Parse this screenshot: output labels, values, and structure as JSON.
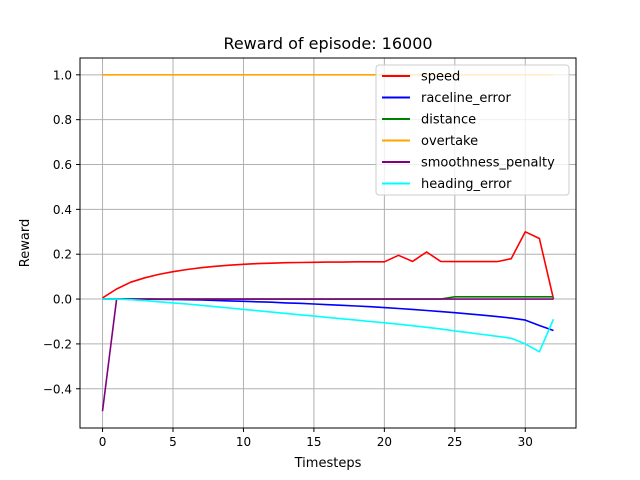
{
  "chart_data": {
    "type": "line",
    "title": "Reward of episode: 16000",
    "xlabel": "Timesteps",
    "ylabel": "Reward",
    "xlim": [
      -1.6,
      33.6
    ],
    "ylim": [
      -0.575,
      1.075
    ],
    "xticks": [
      0,
      5,
      10,
      15,
      20,
      25,
      30
    ],
    "yticks": [
      -0.4,
      -0.2,
      0.0,
      0.2,
      0.4,
      0.6,
      0.8,
      1.0
    ],
    "xtick_labels": [
      "0",
      "5",
      "10",
      "15",
      "20",
      "25",
      "30"
    ],
    "ytick_labels": [
      "−0.4",
      "−0.2",
      "0.0",
      "0.2",
      "0.4",
      "0.6",
      "0.8",
      "1.0"
    ],
    "grid": true,
    "legend_position": "top-right",
    "x": [
      0,
      1,
      2,
      3,
      4,
      5,
      6,
      7,
      8,
      9,
      10,
      11,
      12,
      13,
      14,
      15,
      16,
      17,
      18,
      19,
      20,
      21,
      22,
      23,
      24,
      25,
      26,
      27,
      28,
      29,
      30,
      31,
      32
    ],
    "series": [
      {
        "name": "speed",
        "color": "#ff0000",
        "values": [
          0.005,
          0.045,
          0.075,
          0.095,
          0.11,
          0.122,
          0.132,
          0.14,
          0.146,
          0.151,
          0.155,
          0.158,
          0.16,
          0.162,
          0.163,
          0.164,
          0.165,
          0.165,
          0.166,
          0.166,
          0.166,
          0.195,
          0.168,
          0.21,
          0.168,
          0.167,
          0.167,
          0.167,
          0.167,
          0.18,
          0.3,
          0.27,
          0.0
        ]
      },
      {
        "name": "raceline_error",
        "color": "#0000ff",
        "values": [
          0.0,
          0.0,
          0.0,
          0.0,
          -0.001,
          -0.002,
          -0.003,
          -0.004,
          -0.006,
          -0.008,
          -0.01,
          -0.012,
          -0.014,
          -0.017,
          -0.019,
          -0.022,
          -0.025,
          -0.028,
          -0.031,
          -0.034,
          -0.038,
          -0.042,
          -0.046,
          -0.051,
          -0.056,
          -0.061,
          -0.066,
          -0.072,
          -0.078,
          -0.085,
          -0.094,
          -0.118,
          -0.14
        ]
      },
      {
        "name": "distance",
        "color": "#008000",
        "values": [
          0.0,
          0.0,
          0.0,
          0.0,
          0.0,
          0.0,
          0.0,
          0.0,
          0.0,
          0.0,
          0.0,
          0.0,
          0.0,
          0.0,
          0.0,
          0.0,
          0.0,
          0.0,
          0.0,
          0.0,
          0.0,
          0.0,
          0.0,
          0.0,
          0.0,
          0.01,
          0.01,
          0.01,
          0.01,
          0.01,
          0.01,
          0.01,
          0.01
        ]
      },
      {
        "name": "overtake",
        "color": "#ffa500",
        "values": [
          1.0,
          1.0,
          1.0,
          1.0,
          1.0,
          1.0,
          1.0,
          1.0,
          1.0,
          1.0,
          1.0,
          1.0,
          1.0,
          1.0,
          1.0,
          1.0,
          1.0,
          1.0,
          1.0,
          1.0,
          1.0,
          1.0,
          1.0,
          1.0,
          1.0,
          1.0,
          1.0,
          1.0,
          1.0,
          1.0,
          1.0,
          1.0,
          1.0
        ]
      },
      {
        "name": "smoothness_penalty",
        "color": "#800080",
        "values": [
          -0.5,
          0.0,
          0.0,
          0.0,
          0.0,
          0.0,
          0.0,
          0.0,
          0.0,
          0.0,
          0.0,
          0.0,
          0.0,
          0.0,
          0.0,
          0.0,
          0.0,
          0.0,
          0.0,
          0.0,
          0.0,
          0.0,
          0.0,
          0.0,
          0.0,
          0.0,
          0.0,
          0.0,
          0.0,
          0.0,
          0.0,
          0.0,
          0.0
        ]
      },
      {
        "name": "heading_error",
        "color": "#00ffff",
        "values": [
          0.0,
          0.0,
          -0.003,
          -0.007,
          -0.012,
          -0.017,
          -0.022,
          -0.028,
          -0.034,
          -0.04,
          -0.046,
          -0.052,
          -0.058,
          -0.064,
          -0.07,
          -0.076,
          -0.082,
          -0.088,
          -0.094,
          -0.1,
          -0.106,
          -0.112,
          -0.119,
          -0.126,
          -0.133,
          -0.142,
          -0.15,
          -0.158,
          -0.166,
          -0.175,
          -0.2,
          -0.235,
          -0.09
        ]
      }
    ]
  }
}
